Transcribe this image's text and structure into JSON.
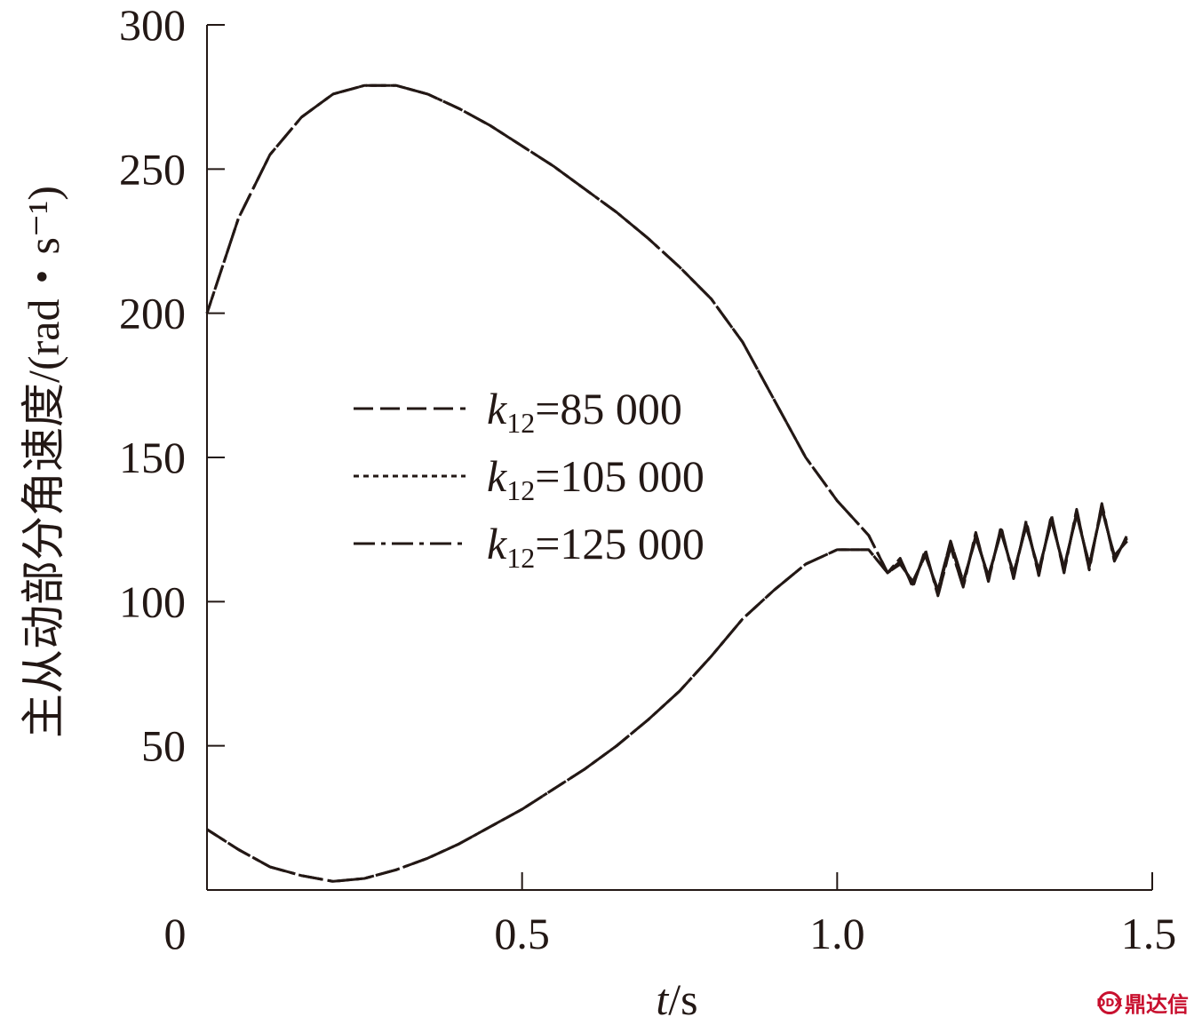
{
  "chart_data": {
    "type": "line",
    "title": "",
    "xlabel": {
      "italic": "t",
      "rest": "/s"
    },
    "ylabel": "主从动部分角速度/(rad・s⁻¹)",
    "xlim": [
      0,
      1.5
    ],
    "ylim": [
      0,
      300
    ],
    "xticks": [
      {
        "value": 0,
        "label": "0"
      },
      {
        "value": 0.5,
        "label": "0.5"
      },
      {
        "value": 1.0,
        "label": "1.0"
      },
      {
        "value": 1.5,
        "label": "1.5"
      }
    ],
    "yticks": [
      {
        "value": 50,
        "label": "50"
      },
      {
        "value": 100,
        "label": "100"
      },
      {
        "value": 150,
        "label": "150"
      },
      {
        "value": 200,
        "label": "200"
      },
      {
        "value": 250,
        "label": "250"
      },
      {
        "value": 300,
        "label": "300"
      }
    ],
    "grid": false,
    "legend_position": "center-left",
    "series": [
      {
        "name": "k12=85 000",
        "legend": {
          "k": "k",
          "sub": "12",
          "rest": "=85 000"
        },
        "dash": "dashed",
        "drive": [
          [
            0,
            200
          ],
          [
            0.05,
            233
          ],
          [
            0.1,
            255
          ],
          [
            0.15,
            268
          ],
          [
            0.2,
            276
          ],
          [
            0.25,
            279
          ],
          [
            0.3,
            279
          ],
          [
            0.35,
            276
          ],
          [
            0.4,
            271
          ],
          [
            0.45,
            265
          ],
          [
            0.5,
            258
          ],
          [
            0.55,
            251
          ],
          [
            0.6,
            243
          ],
          [
            0.65,
            235
          ],
          [
            0.7,
            226
          ],
          [
            0.75,
            216
          ],
          [
            0.8,
            205
          ],
          [
            0.85,
            190
          ],
          [
            0.9,
            170
          ],
          [
            0.95,
            150
          ],
          [
            1.0,
            135
          ],
          [
            1.05,
            123
          ],
          [
            1.08,
            110
          ],
          [
            1.1,
            113
          ],
          [
            1.12,
            107
          ],
          [
            1.14,
            116
          ],
          [
            1.16,
            104
          ],
          [
            1.18,
            121
          ],
          [
            1.2,
            107
          ],
          [
            1.22,
            122
          ],
          [
            1.24,
            109
          ],
          [
            1.26,
            124
          ],
          [
            1.28,
            110
          ],
          [
            1.3,
            126
          ],
          [
            1.32,
            111
          ],
          [
            1.34,
            128
          ],
          [
            1.36,
            112
          ],
          [
            1.38,
            130
          ],
          [
            1.4,
            113
          ],
          [
            1.42,
            132
          ],
          [
            1.44,
            116
          ],
          [
            1.46,
            121
          ]
        ],
        "driven": [
          [
            0,
            21
          ],
          [
            0.05,
            14
          ],
          [
            0.1,
            8
          ],
          [
            0.15,
            5
          ],
          [
            0.2,
            3
          ],
          [
            0.25,
            4
          ],
          [
            0.3,
            7
          ],
          [
            0.35,
            11
          ],
          [
            0.4,
            16
          ],
          [
            0.45,
            22
          ],
          [
            0.5,
            28
          ],
          [
            0.55,
            35
          ],
          [
            0.6,
            42
          ],
          [
            0.65,
            50
          ],
          [
            0.7,
            59
          ],
          [
            0.75,
            69
          ],
          [
            0.8,
            81
          ],
          [
            0.85,
            94
          ],
          [
            0.9,
            104
          ],
          [
            0.95,
            113
          ],
          [
            1.0,
            118
          ],
          [
            1.05,
            118
          ],
          [
            1.08,
            110
          ],
          [
            1.1,
            113
          ],
          [
            1.12,
            107
          ],
          [
            1.14,
            116
          ],
          [
            1.16,
            104
          ],
          [
            1.18,
            121
          ],
          [
            1.2,
            107
          ],
          [
            1.22,
            122
          ],
          [
            1.24,
            109
          ],
          [
            1.26,
            124
          ],
          [
            1.28,
            110
          ],
          [
            1.3,
            126
          ],
          [
            1.32,
            111
          ],
          [
            1.34,
            128
          ],
          [
            1.36,
            112
          ],
          [
            1.38,
            130
          ],
          [
            1.4,
            113
          ],
          [
            1.42,
            132
          ],
          [
            1.44,
            116
          ],
          [
            1.46,
            121
          ]
        ]
      },
      {
        "name": "k12=105 000",
        "legend": {
          "k": "k",
          "sub": "12",
          "rest": "=105 000"
        },
        "dash": "dotted",
        "drive": [
          [
            0,
            200
          ],
          [
            0.05,
            233
          ],
          [
            0.1,
            255
          ],
          [
            0.15,
            268
          ],
          [
            0.2,
            276
          ],
          [
            0.25,
            279
          ],
          [
            0.3,
            279
          ],
          [
            0.35,
            276
          ],
          [
            0.4,
            271
          ],
          [
            0.45,
            265
          ],
          [
            0.5,
            258
          ],
          [
            0.55,
            251
          ],
          [
            0.6,
            243
          ],
          [
            0.65,
            235
          ],
          [
            0.7,
            226
          ],
          [
            0.75,
            216
          ],
          [
            0.8,
            205
          ],
          [
            0.85,
            190
          ],
          [
            0.9,
            170
          ],
          [
            0.95,
            150
          ],
          [
            1.0,
            135
          ],
          [
            1.05,
            123
          ],
          [
            1.08,
            110
          ],
          [
            1.1,
            114
          ],
          [
            1.12,
            106
          ],
          [
            1.14,
            117
          ],
          [
            1.16,
            103
          ],
          [
            1.18,
            120
          ],
          [
            1.2,
            106
          ],
          [
            1.22,
            123
          ],
          [
            1.24,
            108
          ],
          [
            1.26,
            125
          ],
          [
            1.28,
            109
          ],
          [
            1.3,
            127
          ],
          [
            1.32,
            110
          ],
          [
            1.34,
            129
          ],
          [
            1.36,
            111
          ],
          [
            1.38,
            131
          ],
          [
            1.4,
            112
          ],
          [
            1.42,
            133
          ],
          [
            1.44,
            115
          ],
          [
            1.46,
            122
          ]
        ],
        "driven": [
          [
            0,
            21
          ],
          [
            0.05,
            14
          ],
          [
            0.1,
            8
          ],
          [
            0.15,
            5
          ],
          [
            0.2,
            3
          ],
          [
            0.25,
            4
          ],
          [
            0.3,
            7
          ],
          [
            0.35,
            11
          ],
          [
            0.4,
            16
          ],
          [
            0.45,
            22
          ],
          [
            0.5,
            28
          ],
          [
            0.55,
            35
          ],
          [
            0.6,
            42
          ],
          [
            0.65,
            50
          ],
          [
            0.7,
            59
          ],
          [
            0.75,
            69
          ],
          [
            0.8,
            81
          ],
          [
            0.85,
            94
          ],
          [
            0.9,
            104
          ],
          [
            0.95,
            113
          ],
          [
            1.0,
            118
          ],
          [
            1.05,
            118
          ],
          [
            1.08,
            110
          ],
          [
            1.1,
            114
          ],
          [
            1.12,
            106
          ],
          [
            1.14,
            117
          ],
          [
            1.16,
            103
          ],
          [
            1.18,
            120
          ],
          [
            1.2,
            106
          ],
          [
            1.22,
            123
          ],
          [
            1.24,
            108
          ],
          [
            1.26,
            125
          ],
          [
            1.28,
            109
          ],
          [
            1.3,
            127
          ],
          [
            1.32,
            110
          ],
          [
            1.34,
            129
          ],
          [
            1.36,
            111
          ],
          [
            1.38,
            131
          ],
          [
            1.4,
            112
          ],
          [
            1.42,
            133
          ],
          [
            1.44,
            115
          ],
          [
            1.46,
            122
          ]
        ]
      },
      {
        "name": "k12=125 000",
        "legend": {
          "k": "k",
          "sub": "12",
          "rest": "=125 000"
        },
        "dash": "dashdot",
        "drive": [
          [
            0,
            200
          ],
          [
            0.05,
            233
          ],
          [
            0.1,
            255
          ],
          [
            0.15,
            268
          ],
          [
            0.2,
            276
          ],
          [
            0.25,
            279
          ],
          [
            0.3,
            279
          ],
          [
            0.35,
            276
          ],
          [
            0.4,
            271
          ],
          [
            0.45,
            265
          ],
          [
            0.5,
            258
          ],
          [
            0.55,
            251
          ],
          [
            0.6,
            243
          ],
          [
            0.65,
            235
          ],
          [
            0.7,
            226
          ],
          [
            0.75,
            216
          ],
          [
            0.8,
            205
          ],
          [
            0.85,
            190
          ],
          [
            0.9,
            170
          ],
          [
            0.95,
            150
          ],
          [
            1.0,
            135
          ],
          [
            1.05,
            123
          ],
          [
            1.08,
            110
          ],
          [
            1.1,
            115
          ],
          [
            1.12,
            105
          ],
          [
            1.14,
            118
          ],
          [
            1.16,
            102
          ],
          [
            1.18,
            119
          ],
          [
            1.2,
            105
          ],
          [
            1.22,
            124
          ],
          [
            1.24,
            107
          ],
          [
            1.26,
            126
          ],
          [
            1.28,
            108
          ],
          [
            1.3,
            128
          ],
          [
            1.32,
            109
          ],
          [
            1.34,
            130
          ],
          [
            1.36,
            110
          ],
          [
            1.38,
            132
          ],
          [
            1.4,
            111
          ],
          [
            1.42,
            134
          ],
          [
            1.44,
            114
          ],
          [
            1.46,
            123
          ]
        ],
        "driven": [
          [
            0,
            21
          ],
          [
            0.05,
            14
          ],
          [
            0.1,
            8
          ],
          [
            0.15,
            5
          ],
          [
            0.2,
            3
          ],
          [
            0.25,
            4
          ],
          [
            0.3,
            7
          ],
          [
            0.35,
            11
          ],
          [
            0.4,
            16
          ],
          [
            0.45,
            22
          ],
          [
            0.5,
            28
          ],
          [
            0.55,
            35
          ],
          [
            0.6,
            42
          ],
          [
            0.65,
            50
          ],
          [
            0.7,
            59
          ],
          [
            0.75,
            69
          ],
          [
            0.8,
            81
          ],
          [
            0.85,
            94
          ],
          [
            0.9,
            104
          ],
          [
            0.95,
            113
          ],
          [
            1.0,
            118
          ],
          [
            1.05,
            118
          ],
          [
            1.08,
            110
          ],
          [
            1.1,
            115
          ],
          [
            1.12,
            105
          ],
          [
            1.14,
            118
          ],
          [
            1.16,
            102
          ],
          [
            1.18,
            119
          ],
          [
            1.2,
            105
          ],
          [
            1.22,
            124
          ],
          [
            1.24,
            107
          ],
          [
            1.26,
            126
          ],
          [
            1.28,
            108
          ],
          [
            1.3,
            128
          ],
          [
            1.32,
            109
          ],
          [
            1.34,
            130
          ],
          [
            1.36,
            110
          ],
          [
            1.38,
            132
          ],
          [
            1.4,
            111
          ],
          [
            1.42,
            134
          ],
          [
            1.44,
            114
          ],
          [
            1.46,
            123
          ]
        ]
      }
    ]
  },
  "watermark": {
    "text": "鼎达信",
    "logo_text": "DDX"
  }
}
